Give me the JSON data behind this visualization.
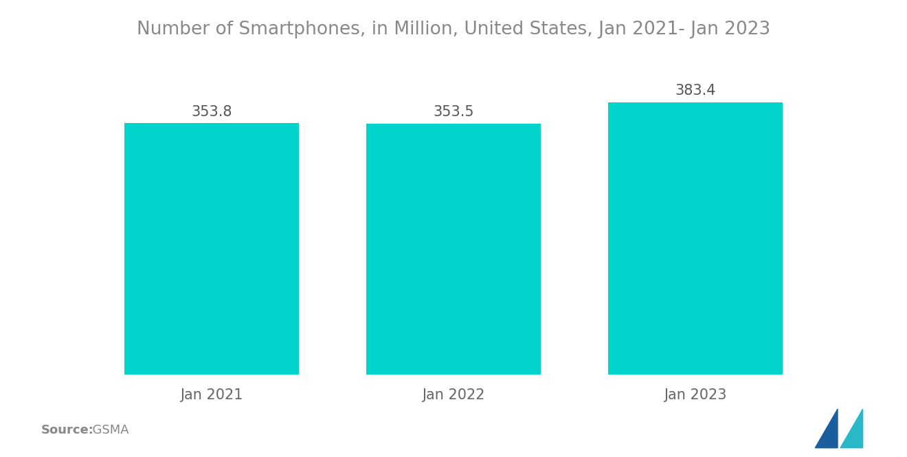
{
  "title": "Number of Smartphones, in Million, United States, Jan 2021- Jan 2023",
  "categories": [
    "Jan 2021",
    "Jan 2022",
    "Jan 2023"
  ],
  "values": [
    353.8,
    353.5,
    383.4
  ],
  "bar_color": "#00D4CC",
  "title_color": "#888888",
  "label_color": "#555555",
  "tick_color": "#666666",
  "source_label": "Source:",
  "source_value": "  GSMA",
  "background_color": "#ffffff",
  "title_fontsize": 19,
  "label_fontsize": 15,
  "value_fontsize": 15,
  "source_fontsize": 13,
  "ylim": [
    0,
    450
  ],
  "bar_width": 0.72,
  "logo_left_color": "#1B5E9E",
  "logo_right_color": "#29B8C8"
}
